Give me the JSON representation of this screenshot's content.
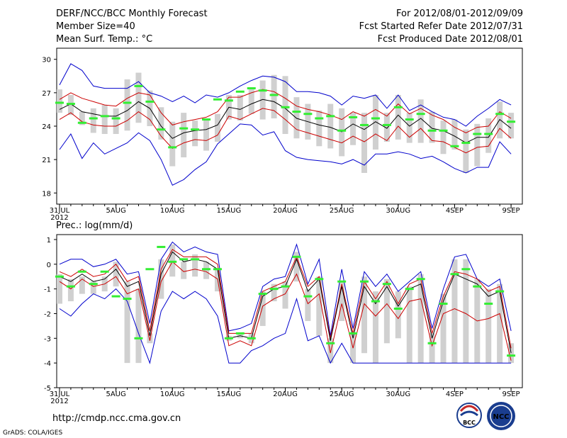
{
  "header": {
    "left": [
      "DERF/NCC/BCC Monthly Forecast",
      "Member Size=40",
      "Mean Surf. Temp.: °C"
    ],
    "right": [
      "For 2012/08/01-2012/09/09",
      "Fcst Started Refer Date 2012/07/31",
      "Fcst Produced Date 2012/08/01"
    ]
  },
  "footer": {
    "url": "http://cmdp.ncc.cma.gov.cn",
    "credit": "GrADS: COLA/IGES",
    "logo_bcc": "BCC",
    "logo_ncc": "NCC"
  },
  "colors": {
    "box": "#d0d0d0",
    "mean": "#000000",
    "spread": "#cc0000",
    "envelope": "#0000cc",
    "obs": "#33ee33",
    "axis": "#000000"
  },
  "chart_data": [
    {
      "type": "line",
      "title": "Mean Surf. Temp.: °C",
      "xlabel": "",
      "ylabel": "",
      "x_tick_labels": [
        "31JUL",
        "5AUG",
        "10AUG",
        "15AUG",
        "20AUG",
        "25AUG",
        "30AUG",
        "4SEP",
        "9SEP"
      ],
      "x_tick_index": [
        0,
        5,
        10,
        15,
        20,
        25,
        30,
        35,
        40
      ],
      "x_year_label": "2012",
      "ylim": [
        17,
        31
      ],
      "yticks": [
        18,
        21,
        24,
        27,
        30
      ],
      "categories": [
        "31JUL",
        "1AUG",
        "2AUG",
        "3AUG",
        "4AUG",
        "5AUG",
        "6AUG",
        "7AUG",
        "8AUG",
        "9AUG",
        "10AUG",
        "11AUG",
        "12AUG",
        "13AUG",
        "14AUG",
        "15AUG",
        "16AUG",
        "17AUG",
        "18AUG",
        "19AUG",
        "20AUG",
        "21AUG",
        "22AUG",
        "23AUG",
        "24AUG",
        "25AUG",
        "26AUG",
        "27AUG",
        "28AUG",
        "29AUG",
        "30AUG",
        "31AUG",
        "1SEP",
        "2SEP",
        "3SEP",
        "4SEP",
        "5SEP",
        "6SEP",
        "7SEP",
        "8SEP",
        "9SEP"
      ],
      "series": [
        {
          "name": "ensemble mean",
          "values": [
            25.5,
            26.0,
            25.3,
            25.1,
            24.9,
            24.9,
            25.4,
            26.2,
            25.6,
            24.0,
            22.9,
            23.4,
            23.6,
            23.7,
            24.1,
            25.7,
            25.5,
            26.0,
            26.4,
            26.2,
            25.6,
            24.7,
            24.4,
            24.1,
            23.9,
            23.5,
            24.2,
            23.7,
            24.4,
            23.8,
            25.0,
            24.0,
            24.7,
            23.8,
            23.6,
            23.1,
            22.5,
            23.0,
            23.0,
            24.6,
            23.8
          ]
        },
        {
          "name": "mean + spread",
          "values": [
            26.4,
            27.0,
            26.5,
            26.2,
            25.9,
            25.8,
            26.5,
            27.0,
            26.8,
            25.2,
            24.1,
            24.4,
            24.6,
            24.8,
            25.3,
            26.6,
            26.6,
            27.0,
            27.3,
            27.1,
            26.5,
            25.8,
            25.5,
            25.3,
            25.0,
            24.6,
            25.3,
            24.9,
            25.5,
            24.9,
            26.0,
            25.1,
            25.6,
            25.0,
            24.6,
            23.9,
            23.4,
            23.9,
            24.0,
            25.3,
            24.7
          ]
        },
        {
          "name": "mean - spread",
          "values": [
            24.6,
            25.2,
            24.4,
            24.1,
            24.0,
            24.0,
            24.5,
            25.3,
            24.6,
            23.1,
            22.0,
            22.5,
            22.8,
            22.7,
            23.2,
            24.9,
            24.6,
            25.1,
            25.6,
            25.4,
            24.6,
            23.7,
            23.4,
            23.1,
            22.8,
            22.5,
            23.1,
            22.6,
            23.3,
            22.7,
            24.0,
            23.0,
            23.8,
            22.7,
            22.6,
            22.1,
            21.6,
            22.1,
            22.2,
            23.8,
            22.9
          ]
        },
        {
          "name": "ensemble max",
          "values": [
            27.7,
            29.6,
            29.0,
            27.6,
            27.4,
            27.4,
            27.4,
            28.0,
            27.0,
            26.7,
            26.2,
            26.7,
            26.1,
            26.8,
            26.6,
            27.0,
            27.6,
            28.1,
            28.5,
            28.4,
            28.0,
            27.1,
            27.1,
            27.0,
            26.7,
            25.9,
            26.7,
            26.5,
            26.8,
            25.6,
            26.8,
            25.4,
            25.9,
            25.3,
            24.8,
            24.6,
            24.0,
            24.9,
            25.6,
            26.4,
            25.9
          ]
        },
        {
          "name": "ensemble min",
          "values": [
            21.9,
            23.3,
            21.1,
            22.5,
            21.5,
            22.0,
            22.5,
            23.4,
            22.7,
            21.0,
            18.7,
            19.2,
            20.1,
            20.8,
            22.4,
            23.3,
            24.2,
            24.1,
            23.2,
            23.5,
            21.8,
            21.2,
            21.0,
            20.9,
            20.8,
            20.6,
            21.0,
            20.5,
            21.5,
            21.5,
            21.7,
            21.5,
            21.1,
            21.3,
            20.8,
            20.2,
            19.8,
            20.3,
            20.3,
            22.6,
            21.5
          ]
        },
        {
          "name": "ensemble box top",
          "values": [
            27.3,
            26.8,
            25.3,
            25.6,
            25.9,
            25.6,
            28.2,
            28.8,
            27.2,
            25.7,
            24.4,
            25.2,
            24.5,
            24.6,
            25.1,
            26.8,
            26.8,
            27.3,
            28.1,
            28.6,
            28.5,
            26.6,
            26.0,
            25.4,
            26.0,
            25.6,
            25.2,
            25.2,
            26.8,
            25.2,
            26.8,
            25.2,
            26.4,
            25.3,
            24.5,
            24.6,
            23.7,
            24.2,
            24.7,
            26.2,
            25.2
          ]
        },
        {
          "name": "ensemble box bottom",
          "values": [
            25.2,
            25.0,
            24.1,
            23.4,
            23.3,
            23.3,
            23.6,
            24.3,
            24.0,
            22.8,
            20.4,
            21.2,
            22.2,
            21.8,
            22.6,
            24.6,
            24.5,
            25.1,
            24.6,
            24.7,
            23.3,
            22.9,
            22.8,
            22.2,
            22.0,
            21.3,
            22.3,
            19.8,
            21.9,
            22.6,
            22.8,
            22.5,
            22.5,
            22.5,
            21.5,
            21.9,
            19.8,
            20.4,
            21.6,
            22.9,
            22.9
          ]
        },
        {
          "name": "observation",
          "values": [
            26.1,
            26.0,
            24.3,
            24.7,
            24.9,
            24.7,
            26.1,
            27.6,
            26.2,
            23.7,
            22.1,
            23.8,
            23.7,
            24.6,
            26.4,
            26.3,
            27.1,
            27.4,
            27.2,
            26.8,
            25.7,
            25.3,
            25.1,
            24.7,
            24.9,
            23.6,
            24.8,
            24.1,
            24.7,
            24.1,
            25.7,
            24.6,
            25.1,
            23.6,
            23.6,
            22.2,
            22.5,
            23.3,
            23.3,
            25.1,
            24.4
          ]
        }
      ]
    },
    {
      "type": "line",
      "title": "Prec.: log(mm/d)",
      "xlabel": "",
      "ylabel": "",
      "x_tick_labels": [
        "31JUL",
        "5AUG",
        "10AUG",
        "15AUG",
        "20AUG",
        "25AUG",
        "30AUG",
        "4SEP",
        "9SEP"
      ],
      "x_tick_index": [
        0,
        5,
        10,
        15,
        20,
        25,
        30,
        35,
        40
      ],
      "x_year_label": "2012",
      "ylim": [
        -5,
        1.2
      ],
      "yticks": [
        -5,
        -4,
        -3,
        -2,
        -1,
        0,
        1
      ],
      "categories": [
        "31JUL",
        "1AUG",
        "2AUG",
        "3AUG",
        "4AUG",
        "5AUG",
        "6AUG",
        "7AUG",
        "8AUG",
        "9AUG",
        "10AUG",
        "11AUG",
        "12AUG",
        "13AUG",
        "14AUG",
        "15AUG",
        "16AUG",
        "17AUG",
        "18AUG",
        "19AUG",
        "20AUG",
        "21AUG",
        "22AUG",
        "23AUG",
        "24AUG",
        "25AUG",
        "26AUG",
        "27AUG",
        "28AUG",
        "29AUG",
        "30AUG",
        "31AUG",
        "1SEP",
        "2SEP",
        "3SEP",
        "4SEP",
        "5SEP",
        "6SEP",
        "7SEP",
        "8SEP",
        "9SEP"
      ],
      "series": [
        {
          "name": "ensemble mean",
          "values": [
            -0.5,
            -0.7,
            -0.4,
            -0.7,
            -0.6,
            -0.2,
            -0.9,
            -0.7,
            -2.9,
            -0.4,
            0.5,
            0.1,
            0.2,
            0.1,
            -0.2,
            -3.0,
            -2.9,
            -3.0,
            -1.3,
            -1.0,
            -0.9,
            0.2,
            -1.1,
            -0.6,
            -3.1,
            -0.9,
            -3.0,
            -0.9,
            -1.6,
            -0.9,
            -1.7,
            -1.0,
            -0.8,
            -3.0,
            -1.5,
            -0.4,
            -0.6,
            -0.8,
            -1.3,
            -1.1,
            -3.6
          ]
        },
        {
          "name": "mean + spread",
          "values": [
            -0.3,
            -0.5,
            -0.2,
            -0.5,
            -0.4,
            0.0,
            -0.7,
            -0.5,
            -2.7,
            -0.2,
            0.6,
            0.3,
            0.3,
            0.3,
            0.0,
            -2.8,
            -2.8,
            -2.8,
            -1.1,
            -0.9,
            -0.7,
            0.3,
            -0.9,
            -0.5,
            -3.0,
            -0.8,
            -2.8,
            -0.7,
            -1.4,
            -0.7,
            -1.6,
            -0.8,
            -0.6,
            -2.8,
            -1.3,
            -0.3,
            -0.4,
            -0.6,
            -1.1,
            -0.9,
            -3.4
          ]
        },
        {
          "name": "mean - spread",
          "values": [
            -0.7,
            -1.0,
            -0.6,
            -0.9,
            -0.8,
            -0.5,
            -1.2,
            -1.0,
            -3.1,
            -0.7,
            0.1,
            -0.3,
            -0.2,
            -0.3,
            -0.6,
            -3.3,
            -3.1,
            -3.3,
            -1.7,
            -1.4,
            -1.2,
            -0.4,
            -1.6,
            -1.2,
            -3.6,
            -1.6,
            -3.4,
            -1.6,
            -2.1,
            -1.6,
            -2.2,
            -1.5,
            -1.4,
            -3.3,
            -2.0,
            -1.8,
            -2.0,
            -2.3,
            -2.2,
            -2.0,
            -3.9
          ]
        },
        {
          "name": "ensemble max",
          "values": [
            0.0,
            0.2,
            0.2,
            -0.1,
            0.0,
            0.2,
            -0.4,
            -0.3,
            -2.4,
            0.2,
            0.9,
            0.5,
            0.7,
            0.5,
            0.4,
            -2.7,
            -2.6,
            -2.4,
            -0.9,
            -0.6,
            -0.5,
            0.8,
            -0.8,
            0.2,
            -2.9,
            -0.2,
            -2.6,
            -0.3,
            -0.9,
            -0.4,
            -1.1,
            -0.7,
            -0.3,
            -2.6,
            -1.0,
            0.3,
            0.4,
            -0.6,
            -0.9,
            -0.6,
            -2.7
          ]
        },
        {
          "name": "ensemble min",
          "values": [
            -1.8,
            -2.1,
            -1.6,
            -1.2,
            -1.4,
            -1.0,
            -1.5,
            -2.8,
            -4.0,
            -1.9,
            -1.1,
            -1.4,
            -1.1,
            -1.4,
            -2.1,
            -4.0,
            -4.0,
            -3.5,
            -3.3,
            -3.0,
            -2.8,
            -1.4,
            -3.1,
            -2.9,
            -4.0,
            -3.2,
            -4.0,
            -4.0,
            -4.0,
            -4.0,
            -4.0,
            -4.0,
            -4.0,
            -4.0,
            -4.0,
            -4.0,
            -4.0,
            -4.0,
            -4.0,
            -4.0,
            -4.0
          ]
        },
        {
          "name": "ensemble box top",
          "values": [
            -0.4,
            -0.6,
            -0.5,
            -0.7,
            -0.5,
            0.1,
            -0.7,
            -1.0,
            -2.8,
            0.2,
            0.8,
            0.1,
            0.4,
            0.1,
            -0.2,
            -2.9,
            -2.8,
            -2.8,
            -1.1,
            -0.8,
            -0.7,
            0.5,
            -1.0,
            -0.5,
            -3.0,
            -0.7,
            -2.8,
            -0.5,
            -1.1,
            -0.6,
            -1.1,
            -0.9,
            -0.4,
            -2.8,
            -1.2,
            0.2,
            0.2,
            -0.6,
            -1.0,
            -0.8,
            -3.2
          ]
        },
        {
          "name": "ensemble box bottom",
          "values": [
            -1.6,
            -1.5,
            -1.2,
            -1.2,
            -1.1,
            -0.9,
            -4.0,
            -4.0,
            -3.2,
            -1.4,
            -0.5,
            -0.6,
            -0.5,
            -0.6,
            -1.1,
            -3.1,
            -3.0,
            -3.2,
            -2.5,
            -1.5,
            -1.8,
            -0.7,
            -2.3,
            -2.9,
            -4.0,
            -2.3,
            -4.0,
            -3.6,
            -4.0,
            -3.2,
            -3.0,
            -4.0,
            -4.0,
            -4.0,
            -4.0,
            -4.0,
            -4.0,
            -4.0,
            -4.0,
            -4.0,
            -4.0
          ]
        },
        {
          "name": "observation",
          "values": [
            -0.5,
            -0.9,
            -0.3,
            -0.8,
            -0.3,
            -1.3,
            -1.4,
            -3.0,
            -0.2,
            0.7,
            0.1,
            0.2,
            0.2,
            -0.2,
            -0.2,
            -3.0,
            -2.8,
            -3.0,
            -1.2,
            -1.0,
            -0.9,
            0.3,
            -1.3,
            -0.6,
            -3.2,
            -0.7,
            -2.8,
            -0.7,
            -1.5,
            -0.8,
            -1.8,
            -1.0,
            -0.6,
            -3.2,
            -1.6,
            -0.4,
            -0.2,
            -0.9,
            -1.6,
            -1.1,
            -3.7
          ]
        }
      ]
    }
  ]
}
